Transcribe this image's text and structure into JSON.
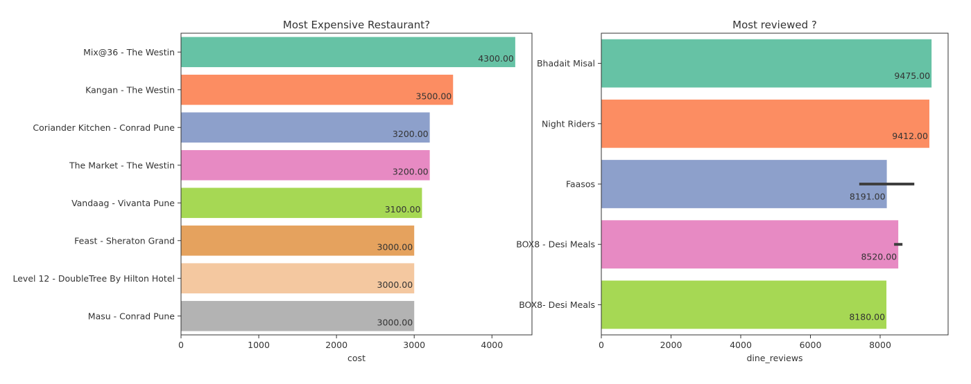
{
  "chart_data": [
    {
      "type": "bar",
      "orientation": "horizontal",
      "title": "Most Expensive Restaurant?",
      "xlabel": "cost",
      "ylabel": "",
      "categories": [
        "Mix@36 - The Westin",
        "Kangan - The Westin",
        "Coriander Kitchen - Conrad Pune",
        "The Market - The Westin",
        "Vandaag - Vivanta Pune",
        "Feast - Sheraton Grand",
        "Level 12 - DoubleTree By Hilton Hotel",
        "Masu - Conrad Pune"
      ],
      "values": [
        4300,
        3500,
        3200,
        3200,
        3100,
        3000,
        3000,
        3000
      ],
      "value_labels": [
        "4300.00",
        "3500.00",
        "3200.00",
        "3200.00",
        "3100.00",
        "3000.00",
        "3000.00",
        "3000.00"
      ],
      "colors": [
        "#66c2a5",
        "#fc8d62",
        "#8da0cb",
        "#e78ac3",
        "#a6d854",
        "#e5a25e",
        "#f4c8a0",
        "#b3b3b3"
      ],
      "xlim": [
        0,
        4515
      ],
      "xticks": [
        0,
        1000,
        2000,
        3000,
        4000
      ],
      "xtick_labels": [
        "0",
        "1000",
        "2000",
        "3000",
        "4000"
      ],
      "grid": false
    },
    {
      "type": "bar",
      "orientation": "horizontal",
      "title": "Most reviewed ?",
      "xlabel": "dine_reviews",
      "ylabel": "",
      "categories": [
        "Bhadait Misal",
        "Night Riders",
        "Faasos",
        "BOX8 - Desi Meals",
        "BOX8- Desi Meals"
      ],
      "values": [
        9475,
        9412,
        8191,
        8520,
        8180
      ],
      "value_labels": [
        "9475.00",
        "9412.00",
        "8191.00",
        "8520.00",
        "8180.00"
      ],
      "error_bars": [
        null,
        null,
        [
          7400,
          8980
        ],
        [
          8400,
          8640
        ],
        null
      ],
      "colors": [
        "#66c2a5",
        "#fc8d62",
        "#8da0cb",
        "#e78ac3",
        "#a6d854"
      ],
      "xlim": [
        0,
        9950
      ],
      "xticks": [
        0,
        2000,
        4000,
        6000,
        8000
      ],
      "xtick_labels": [
        "0",
        "2000",
        "4000",
        "6000",
        "8000"
      ],
      "grid": false
    }
  ]
}
